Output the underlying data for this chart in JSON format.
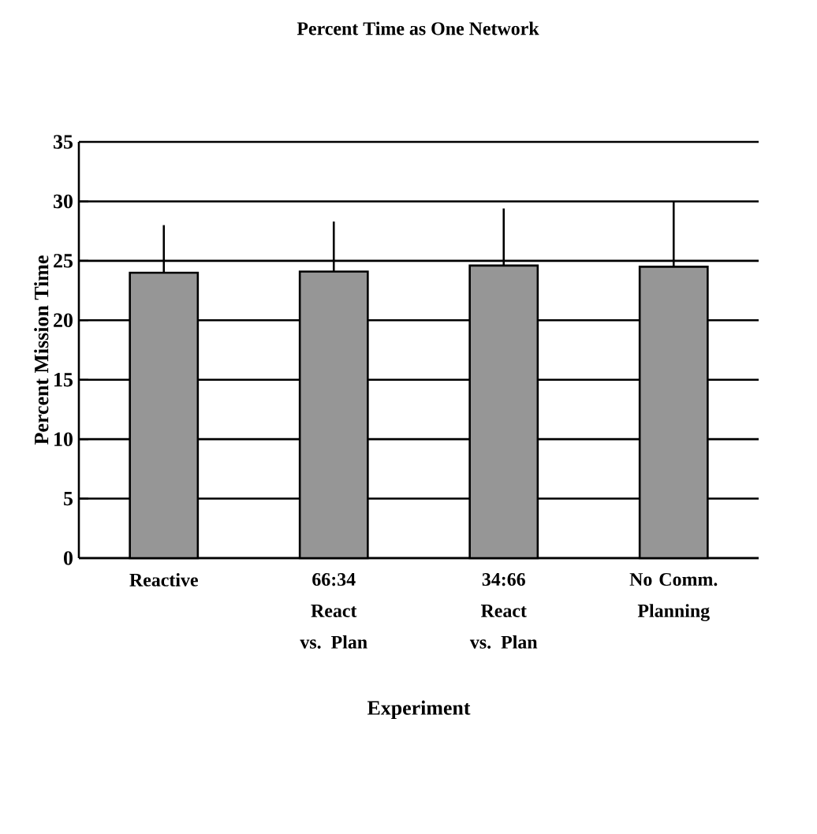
{
  "chart_data": {
    "type": "bar",
    "title": "Percent Time as One Network",
    "xlabel": "Experiment",
    "ylabel": "Percent Mission Time",
    "categories": [
      "Reactive",
      "66:34 React vs. Plan",
      "34:66 React vs. Plan",
      "No Comm. Planning"
    ],
    "values": [
      24.0,
      24.1,
      24.6,
      24.5
    ],
    "errors": [
      [
        24.0,
        28.0
      ],
      [
        24.1,
        28.3
      ],
      [
        24.6,
        29.4
      ],
      [
        24.5,
        30.0
      ]
    ],
    "color": "#969696",
    "ylim": [
      0,
      35
    ],
    "yticks": [
      0,
      5,
      10,
      15,
      20,
      25,
      30,
      35
    ],
    "grid": "y"
  }
}
